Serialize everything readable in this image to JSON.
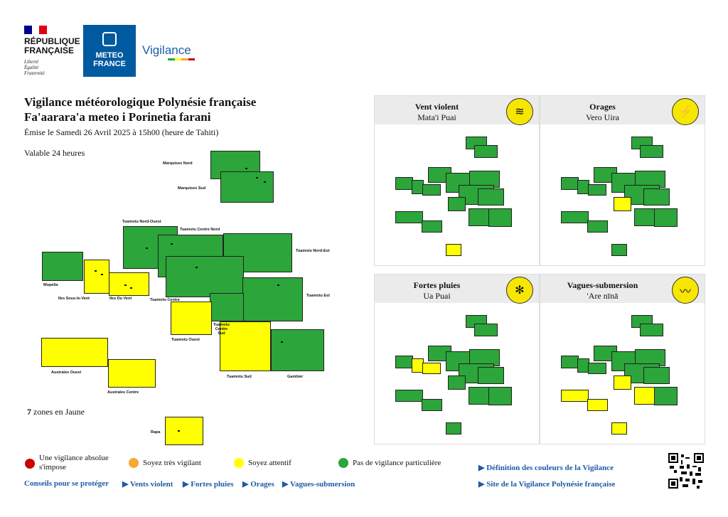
{
  "header": {
    "rf_title": "RÉPUBLIQUE FRANÇAISE",
    "rf_motto": [
      "Liberté",
      "Égalité",
      "Fraternité"
    ],
    "mf_logo_text": "METEO FRANCE",
    "vigilance_logo": "Vigilance"
  },
  "main": {
    "title_fr": "Vigilance météorologique Polynésie française",
    "title_tah": "Fa'aarara'a meteo i Porinetia farani",
    "issued": "Émise le Samedi 26 Avril 2025 à 15h00 (heure de Tahiti)",
    "valid": "Valable 24 heures",
    "count_number": "7",
    "count_text": " zones en Jaune"
  },
  "colors": {
    "green": "#2ca53a",
    "yellow": "#ffff00",
    "orange": "#f7a933",
    "red": "#cc0000"
  },
  "map_labels": {
    "marquises_nord": "Marquises Nord",
    "marquises_sud": "Marquises Sud",
    "tuamotu_nord_ouest": "Tuamotu Nord-Ouest",
    "tuamotu_centre_nord": "Tuamotu Centre Nord",
    "tuamotu_nord_est": "Tuamotu Nord-Est",
    "mopelia": "Mopelia",
    "iles_sous_le_vent": "Iles Sous-le-Vent",
    "iles_du_vent": "Iles Du Vent",
    "tuamotu_centre": "Tuamotu Centre",
    "tuamotu_est": "Tuamotu Est",
    "tuamotu_ouest": "Tuamotu Ouest",
    "tuamotu_centre_sud_1": "Tuamotu",
    "tuamotu_centre_sud_2": "Centre",
    "tuamotu_centre_sud_3": "Sud",
    "australes_ouest": "Australes Ouest",
    "australes_centre": "Australes Centre",
    "tuamotu_sud": "Tuamotu Sud",
    "gambier": "Gambier",
    "rapa": "Rapa"
  },
  "panels": [
    {
      "title": "Vent violent",
      "subtitle": "Mata'i Puai",
      "icon": "wind-icon"
    },
    {
      "title": "Orages",
      "subtitle": "Vero Uira",
      "icon": "lightning-icon"
    },
    {
      "title": "Fortes pluies",
      "subtitle": "Ua Puai",
      "icon": "rain-icon"
    },
    {
      "title": "Vagues-submersion",
      "subtitle": "'Are nīnā",
      "icon": "wave-icon"
    }
  ],
  "legend": [
    {
      "label": "Une vigilance absolue s'impose",
      "color": "#cc0000"
    },
    {
      "label": "Soyez très vigilant",
      "color": "#f7a933"
    },
    {
      "label": "Soyez attentif",
      "color": "#ffff00"
    },
    {
      "label": "Pas de vigilance particulière",
      "color": "#2ca53a"
    }
  ],
  "links": {
    "conseils": "Conseils pour se protéger",
    "vents": "▶ Vents violent",
    "pluies": "▶ Fortes pluies",
    "orages": "▶ Orages",
    "vagues": "▶ Vagues-submersion",
    "definition": "▶ Définition des couleurs de la Vigilance",
    "site": "▶ Site de la Vigilance Polynésie française"
  }
}
